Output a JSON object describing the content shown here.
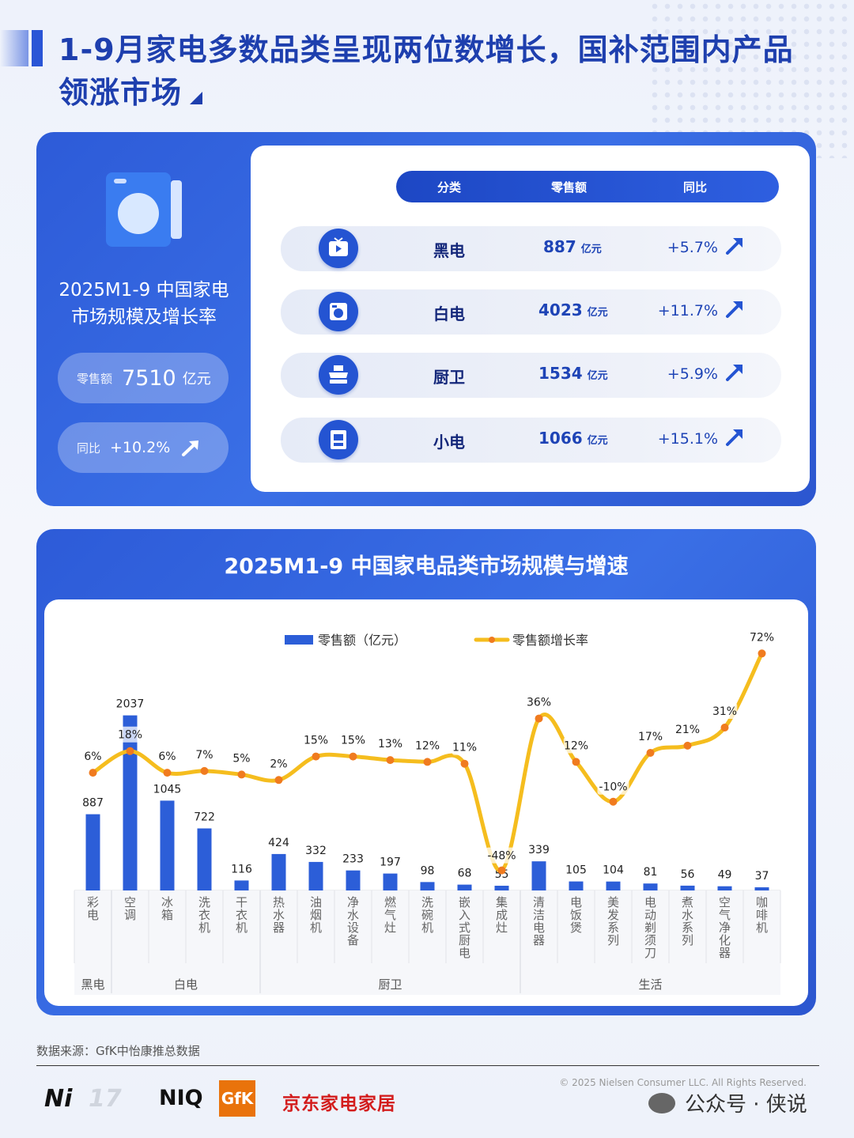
{
  "header": {
    "title": "1-9月家电多数品类呈现两位数增长，国补范围内产品领涨市场"
  },
  "summary": {
    "title_line1": "2025M1-9 中国家电",
    "title_line2": "市场规模及增长率",
    "retail_label": "零售额",
    "retail_value": "7510",
    "retail_unit": "亿元",
    "yoy_label": "同比",
    "yoy_value": "+10.2%"
  },
  "table": {
    "headers": [
      "分类",
      "零售额",
      "同比"
    ],
    "rows": [
      {
        "category": "黑电",
        "value": "887",
        "unit": "亿元",
        "yoy": "+5.7%",
        "icon": "tv-icon"
      },
      {
        "category": "白电",
        "value": "4023",
        "unit": "亿元",
        "yoy": "+11.7%",
        "icon": "washer-icon"
      },
      {
        "category": "厨卫",
        "value": "1534",
        "unit": "亿元",
        "yoy": "+5.9%",
        "icon": "range-hood-icon"
      },
      {
        "category": "小电",
        "value": "1066",
        "unit": "亿元",
        "yoy": "+15.1%",
        "icon": "appliance-icon"
      }
    ]
  },
  "chart_title": "2025M1-9 中国家电品类市场规模与增速",
  "chart_data": {
    "type": "bar",
    "categories": [
      "彩电",
      "空调",
      "冰箱",
      "洗衣机",
      "干衣机",
      "热水器",
      "油烟机",
      "净水设备",
      "燃气灶",
      "洗碗机",
      "嵌入式厨电",
      "集成灶",
      "清洁电器",
      "电饭煲",
      "美发系列",
      "电动剃须刀",
      "煮水系列",
      "空气净化器",
      "咖啡机"
    ],
    "groups": [
      {
        "name": "黑电",
        "start": 0,
        "end": 0
      },
      {
        "name": "白电",
        "start": 1,
        "end": 4
      },
      {
        "name": "厨卫",
        "start": 5,
        "end": 11
      },
      {
        "name": "生活",
        "start": 12,
        "end": 18
      }
    ],
    "series": [
      {
        "name": "零售额（亿元）",
        "type": "bar",
        "values": [
          887,
          2037,
          1045,
          722,
          116,
          424,
          332,
          233,
          197,
          98,
          68,
          55,
          339,
          105,
          104,
          81,
          56,
          49,
          37
        ]
      },
      {
        "name": "零售额增长率",
        "type": "line",
        "values": [
          6,
          18,
          6,
          7,
          5,
          2,
          15,
          15,
          13,
          12,
          11,
          -48,
          36,
          12,
          -10,
          17,
          21,
          31,
          72
        ]
      }
    ],
    "bar_labels": [
      "887",
      "2037",
      "1045",
      "722",
      "116",
      "424",
      "332",
      "233",
      "197",
      "98",
      "68",
      "55",
      "339",
      "105",
      "104",
      "81",
      "56",
      "49",
      "37"
    ],
    "line_labels": [
      "6%",
      "18%",
      "6%",
      "7%",
      "5%",
      "2%",
      "15%",
      "15%",
      "13%",
      "12%",
      "11%",
      "-48%",
      "36%",
      "12%",
      "-10%",
      "17%",
      "21%",
      "31%",
      "72%"
    ],
    "bar_ylim": [
      0,
      2300
    ],
    "line_ylim": [
      -60,
      80
    ],
    "legend": "top-center",
    "colors": {
      "bar": "#2c5ed8",
      "line": "#f5bd1e",
      "marker": "#f07b1f"
    }
  },
  "footer": {
    "source": "数据来源：GfK中怡康推总数据",
    "copyright": "© 2025 Nielsen Consumer LLC. All Rights Reserved.",
    "logo_ni": "Ni",
    "logo_17": "17",
    "logo_niq": "NIQ",
    "logo_gfk": "GfK",
    "logo_jd": "京东家电家居",
    "wechat": "公众号 · 侠说"
  }
}
